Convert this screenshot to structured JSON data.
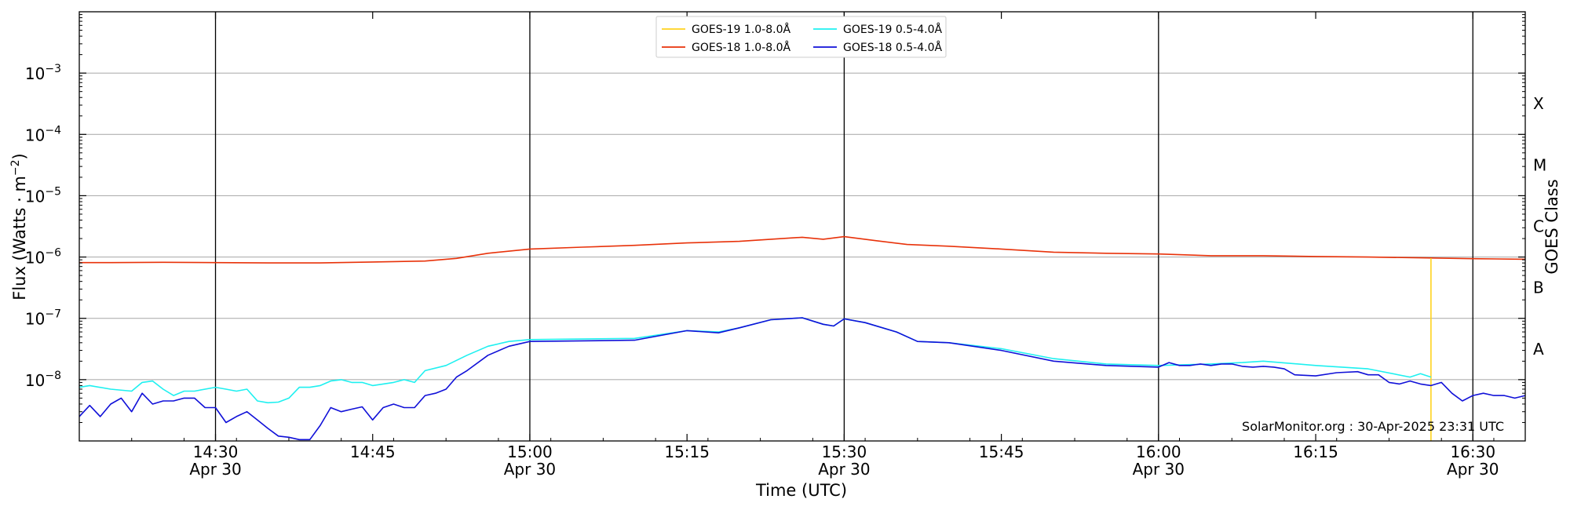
{
  "chart_data": {
    "type": "line",
    "title": "",
    "xlabel": "Time (UTC)",
    "ylabel": "Flux (Watts · m",
    "ylabel_superscript": "−2",
    "ylabel_close": ")",
    "y_scale": "log",
    "ylim": [
      1e-09,
      0.01
    ],
    "xlim": [
      "14:17",
      "16:35"
    ],
    "x_ticks": [
      {
        "time": "14:30",
        "label": "14:30",
        "sublabel": "Apr 30"
      },
      {
        "time": "14:45",
        "label": "14:45",
        "sublabel": ""
      },
      {
        "time": "15:00",
        "label": "15:00",
        "sublabel": "Apr 30"
      },
      {
        "time": "15:15",
        "label": "15:15",
        "sublabel": ""
      },
      {
        "time": "15:30",
        "label": "15:30",
        "sublabel": "Apr 30"
      },
      {
        "time": "15:45",
        "label": "15:45",
        "sublabel": ""
      },
      {
        "time": "16:00",
        "label": "16:00",
        "sublabel": "Apr 30"
      },
      {
        "time": "16:15",
        "label": "16:15",
        "sublabel": ""
      },
      {
        "time": "16:30",
        "label": "16:30",
        "sublabel": "Apr 30"
      }
    ],
    "y_ticks": [
      {
        "exp": -8,
        "base": "10",
        "sup": "−8"
      },
      {
        "exp": -7,
        "base": "10",
        "sup": "−7"
      },
      {
        "exp": -6,
        "base": "10",
        "sup": "−6"
      },
      {
        "exp": -5,
        "base": "10",
        "sup": "−5"
      },
      {
        "exp": -4,
        "base": "10",
        "sup": "−4"
      },
      {
        "exp": -3,
        "base": "10",
        "sup": "−3"
      }
    ],
    "grid": "horizontal at decades",
    "vertical_markers": [
      "14:30",
      "15:00",
      "15:30",
      "16:00",
      "16:30"
    ],
    "right_axis": {
      "label": "GOES Class",
      "classes": [
        {
          "name": "A",
          "exp": -7.5
        },
        {
          "name": "B",
          "exp": -6.5
        },
        {
          "name": "C",
          "exp": -5.5
        },
        {
          "name": "M",
          "exp": -4.5
        },
        {
          "name": "X",
          "exp": -3.5
        }
      ]
    },
    "legend": {
      "placement": "top-center",
      "entries": [
        {
          "name": "GOES-19 1.0-8.0Å",
          "color": "#ffd21e"
        },
        {
          "name": "GOES-18 1.0-8.0Å",
          "color": "#e8320a"
        },
        {
          "name": "GOES-19 0.5-4.0Å",
          "color": "#1ef0f0"
        },
        {
          "name": "GOES-18 0.5-4.0Å",
          "color": "#1010d8"
        }
      ]
    },
    "credit": "SolarMonitor.org : 30-Apr-2025 23:31 UTC",
    "series": [
      {
        "name": "GOES-18 1.0-8.0Å",
        "color": "#e8320a",
        "x": [
          "14:17",
          "14:20",
          "14:25",
          "14:30",
          "14:35",
          "14:40",
          "14:45",
          "14:50",
          "14:53",
          "14:56",
          "15:00",
          "15:05",
          "15:10",
          "15:15",
          "15:20",
          "15:23",
          "15:26",
          "15:28",
          "15:30",
          "15:33",
          "15:36",
          "15:40",
          "15:45",
          "15:50",
          "15:55",
          "16:00",
          "16:05",
          "16:10",
          "16:15",
          "16:20",
          "16:25",
          "16:30",
          "16:35"
        ],
        "values": [
          8.1e-07,
          8.1e-07,
          8.2e-07,
          8.1e-07,
          8e-07,
          8e-07,
          8.3e-07,
          8.6e-07,
          9.5e-07,
          1.15e-06,
          1.35e-06,
          1.45e-06,
          1.55e-06,
          1.7e-06,
          1.8e-06,
          1.95e-06,
          2.1e-06,
          1.95e-06,
          2.15e-06,
          1.85e-06,
          1.6e-06,
          1.5e-06,
          1.35e-06,
          1.2e-06,
          1.15e-06,
          1.12e-06,
          1.05e-06,
          1.05e-06,
          1.02e-06,
          1e-06,
          9.7e-07,
          9.4e-07,
          9.2e-07
        ]
      },
      {
        "name": "GOES-19 1.0-8.0Å",
        "color": "#ffd21e",
        "x": [
          "16:26",
          "16:26"
        ],
        "values": [
          9.6e-07,
          1e-09
        ]
      },
      {
        "name": "GOES-19 0.5-4.0Å",
        "color": "#1ef0f0",
        "x": [
          "14:17",
          "14:18",
          "14:20",
          "14:22",
          "14:23",
          "14:24",
          "14:25",
          "14:26",
          "14:27",
          "14:28",
          "14:30",
          "14:31",
          "14:32",
          "14:33",
          "14:34",
          "14:35",
          "14:36",
          "14:37",
          "14:38",
          "14:39",
          "14:40",
          "14:41",
          "14:42",
          "14:43",
          "14:44",
          "14:45",
          "14:46",
          "14:47",
          "14:48",
          "14:49",
          "14:50",
          "14:52",
          "14:54",
          "14:56",
          "14:58",
          "15:00",
          "15:05",
          "15:10",
          "15:15",
          "15:18",
          "15:20",
          "15:23",
          "15:26",
          "15:28",
          "15:29",
          "15:30",
          "15:32",
          "15:35",
          "15:37",
          "15:40",
          "15:45",
          "15:50",
          "15:55",
          "16:00",
          "16:05",
          "16:08",
          "16:10",
          "16:15",
          "16:20",
          "16:24",
          "16:25",
          "16:26"
        ],
        "values": [
          7.5e-09,
          8e-09,
          7e-09,
          6.5e-09,
          9e-09,
          9.5e-09,
          7e-09,
          5.5e-09,
          6.5e-09,
          6.5e-09,
          7.5e-09,
          7e-09,
          6.5e-09,
          7e-09,
          4.5e-09,
          4.2e-09,
          4.3e-09,
          5e-09,
          7.5e-09,
          7.5e-09,
          8e-09,
          9.5e-09,
          1e-08,
          9e-09,
          9e-09,
          8e-09,
          8.5e-09,
          9e-09,
          1e-08,
          9e-09,
          1.4e-08,
          1.7e-08,
          2.5e-08,
          3.5e-08,
          4.2e-08,
          4.5e-08,
          4.6e-08,
          4.7e-08,
          6.3e-08,
          6e-08,
          7e-08,
          9.5e-08,
          1.02e-07,
          8e-08,
          7.5e-08,
          9.8e-08,
          8.5e-08,
          6e-08,
          4.2e-08,
          4e-08,
          3.2e-08,
          2.2e-08,
          1.8e-08,
          1.7e-08,
          1.8e-08,
          1.9e-08,
          2e-08,
          1.7e-08,
          1.5e-08,
          1.1e-08,
          1.25e-08,
          1.1e-08
        ]
      },
      {
        "name": "GOES-18 0.5-4.0Å",
        "color": "#1010d8",
        "x": [
          "14:17",
          "14:18",
          "14:19",
          "14:20",
          "14:21",
          "14:22",
          "14:23",
          "14:24",
          "14:25",
          "14:26",
          "14:27",
          "14:28",
          "14:29",
          "14:30",
          "14:31",
          "14:32",
          "14:33",
          "14:34",
          "14:35",
          "14:36",
          "14:37",
          "14:38",
          "14:39",
          "14:40",
          "14:41",
          "14:42",
          "14:43",
          "14:44",
          "14:45",
          "14:46",
          "14:47",
          "14:48",
          "14:49",
          "14:50",
          "14:51",
          "14:52",
          "14:53",
          "14:54",
          "14:56",
          "14:58",
          "15:00",
          "15:05",
          "15:10",
          "15:15",
          "15:18",
          "15:20",
          "15:23",
          "15:26",
          "15:28",
          "15:29",
          "15:30",
          "15:32",
          "15:35",
          "15:37",
          "15:40",
          "15:45",
          "15:50",
          "15:55",
          "16:00",
          "16:01",
          "16:02",
          "16:03",
          "16:04",
          "16:05",
          "16:06",
          "16:07",
          "16:08",
          "16:09",
          "16:10",
          "16:11",
          "16:12",
          "16:13",
          "16:15",
          "16:17",
          "16:19",
          "16:20",
          "16:21",
          "16:22",
          "16:23",
          "16:24",
          "16:25",
          "16:26",
          "16:27",
          "16:28",
          "16:29",
          "16:30",
          "16:31",
          "16:32",
          "16:33",
          "16:34",
          "16:35"
        ],
        "values": [
          2.5e-09,
          3.8e-09,
          2.5e-09,
          4e-09,
          5e-09,
          3e-09,
          6e-09,
          4e-09,
          4.5e-09,
          4.5e-09,
          5e-09,
          5e-09,
          3.5e-09,
          3.5e-09,
          2e-09,
          2.5e-09,
          3e-09,
          2.2e-09,
          1.6e-09,
          1.2e-09,
          1.15e-09,
          1.05e-09,
          1.05e-09,
          1.8e-09,
          3.5e-09,
          3e-09,
          3.3e-09,
          3.6e-09,
          2.2e-09,
          3.5e-09,
          4e-09,
          3.5e-09,
          3.5e-09,
          5.5e-09,
          6e-09,
          7e-09,
          1.1e-08,
          1.4e-08,
          2.5e-08,
          3.5e-08,
          4.2e-08,
          4.3e-08,
          4.4e-08,
          6.3e-08,
          5.8e-08,
          7e-08,
          9.5e-08,
          1.02e-07,
          8e-08,
          7.5e-08,
          9.8e-08,
          8.5e-08,
          6e-08,
          4.2e-08,
          4e-08,
          3e-08,
          2e-08,
          1.7e-08,
          1.6e-08,
          1.9e-08,
          1.7e-08,
          1.7e-08,
          1.8e-08,
          1.7e-08,
          1.8e-08,
          1.8e-08,
          1.65e-08,
          1.6e-08,
          1.65e-08,
          1.6e-08,
          1.5e-08,
          1.2e-08,
          1.15e-08,
          1.3e-08,
          1.35e-08,
          1.2e-08,
          1.2e-08,
          9e-09,
          8.5e-09,
          9.5e-09,
          8.5e-09,
          8e-09,
          9e-09,
          6e-09,
          4.5e-09,
          5.5e-09,
          6e-09,
          5.5e-09,
          5.5e-09,
          5e-09,
          5.5e-09
        ]
      }
    ]
  }
}
